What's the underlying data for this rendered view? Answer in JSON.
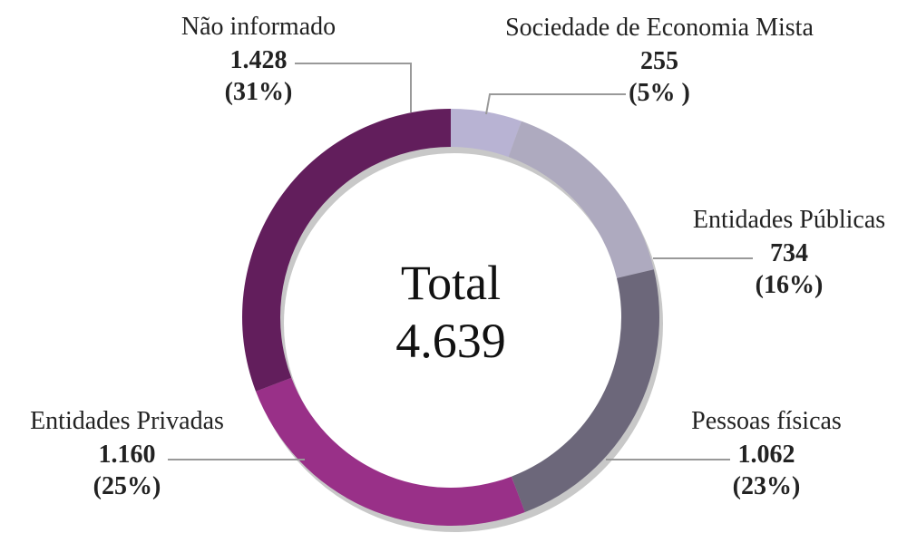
{
  "chart_data": {
    "type": "donut",
    "categories": [
      "Sociedade de Economia Mista",
      "Entidades Públicas",
      "Pessoas físicas",
      "Entidades Privadas",
      "Não informado"
    ],
    "values": [
      255,
      734,
      1062,
      1160,
      1428
    ],
    "value_labels": [
      "255",
      "734",
      "1.062",
      "1.160",
      "1.428"
    ],
    "percent_labels": [
      "(5% )",
      "(16%)",
      "(23%)",
      "(25%)",
      "(31%)"
    ],
    "colors": [
      "#b8b3d3",
      "#aeaabf",
      "#6c677a",
      "#993088",
      "#621e5c"
    ],
    "center_title": "Total",
    "center_value": "4.639"
  }
}
